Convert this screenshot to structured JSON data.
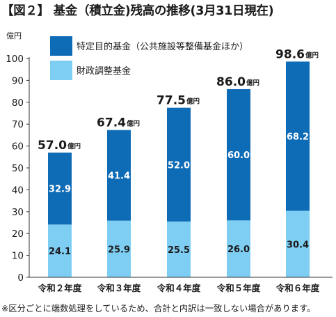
{
  "title": "【図２】 基金（積立金)残高の推移(3月31日現在)",
  "footnote": "※区分ごとに端数処理をしているため、合計と内訳は一致しない場合があります。",
  "chart_data": {
    "type": "bar",
    "stacked": true,
    "title": "【図２】 基金（積立金)残高の推移(3月31日現在)",
    "ylabel": "億円",
    "xlabel": "",
    "ylim": [
      0,
      100
    ],
    "yticks": [
      0,
      10,
      20,
      30,
      40,
      50,
      60,
      70,
      80,
      90,
      100
    ],
    "grid": false,
    "legend_position": "top",
    "categories": [
      "令和２年度",
      "令和３年度",
      "令和４年度",
      "令和５年度",
      "令和６年度"
    ],
    "series": [
      {
        "name": "財政調整基金",
        "color": "#7ecef4",
        "values": [
          24.1,
          25.9,
          25.5,
          26.0,
          30.4
        ],
        "labels": [
          "24.1",
          "25.9",
          "25.5",
          "26.0",
          "30.4"
        ]
      },
      {
        "name": "特定目的基金（公共施設等整備基金ほか）",
        "color": "#0e6bb6",
        "values": [
          32.9,
          41.4,
          52.0,
          60.0,
          68.2
        ],
        "labels": [
          "32.9",
          "41.4",
          "52.0",
          "60.0",
          "68.2"
        ]
      }
    ],
    "totals": [
      57.0,
      67.4,
      77.5,
      86.0,
      98.6
    ],
    "total_labels": [
      "57.0",
      "67.4",
      "77.5",
      "86.0",
      "98.6"
    ],
    "total_unit": "億円"
  }
}
